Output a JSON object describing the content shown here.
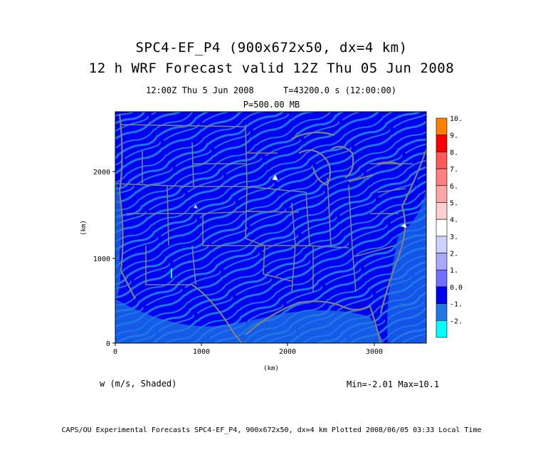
{
  "header": {
    "title_line1": "SPC4-EF_P4 (900x672x50, dx=4 km)",
    "title_line2": "12 h WRF Forecast valid 12Z Thu 05 Jun 2008",
    "valid_time": "12:00Z Thu  5 Jun 2008",
    "sim_time": "T=43200.0 s (12:00:00)",
    "level": "P=500.00 MB"
  },
  "map": {
    "x_axis": {
      "label": "(km)",
      "ticks": [
        "0",
        "1000",
        "2000",
        "3000"
      ]
    },
    "y_axis": {
      "label": "(km)",
      "ticks": [
        "0",
        "1000",
        "2000"
      ]
    },
    "fill_colors": {
      "background": "#1e78e6",
      "dominant": "#0000f0",
      "borders": "#808080"
    }
  },
  "colorbar": {
    "labels": [
      "10.",
      "9.",
      "8.",
      "7.",
      "6.",
      "5.",
      "4.",
      "3.",
      "2.",
      "1.",
      "0.0",
      "-1.",
      "-2."
    ],
    "colors": [
      "#ff8000",
      "#ff0000",
      "#ff5a5a",
      "#ff7e7e",
      "#ffa6a6",
      "#ffcece",
      "#ffffff",
      "#d0d0ff",
      "#a8a8ff",
      "#7070ff",
      "#0000f0",
      "#1e78e6",
      "#00ffff"
    ]
  },
  "variable_label": "w (m/s, Shaded)",
  "min_max": "Min=-2.01 Max=10.1",
  "footer": "CAPS/OU Experimental Forecasts  SPC4-EF_P4, 900x672x50, dx=4 km  Plotted 2008/06/05 03:33 Local Time"
}
